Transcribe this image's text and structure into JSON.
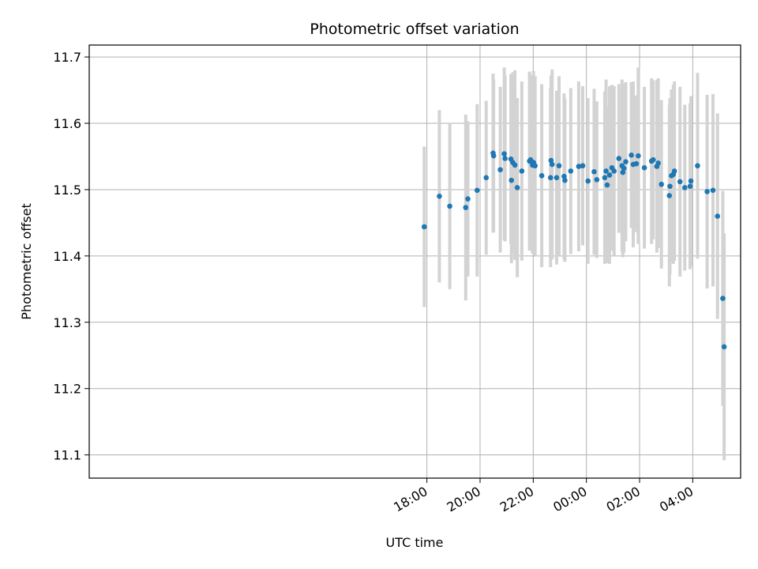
{
  "chart_data": {
    "type": "scatter",
    "title": "Photometric offset variation",
    "xlabel": "UTC time",
    "ylabel": "Photometric offset",
    "x_unit": "hours since 00:00 UTC",
    "xlim": [
      -18.7,
      5.8
    ],
    "ylim": [
      11.065,
      11.718
    ],
    "x_ticks": [
      {
        "x": -6.0,
        "label": "18:00"
      },
      {
        "x": -4.0,
        "label": "20:00"
      },
      {
        "x": -2.0,
        "label": "22:00"
      },
      {
        "x": 0.0,
        "label": "00:00"
      },
      {
        "x": 2.0,
        "label": "02:00"
      },
      {
        "x": 4.0,
        "label": "04:00"
      }
    ],
    "y_ticks": [
      {
        "y": 11.1,
        "label": "11.1"
      },
      {
        "y": 11.2,
        "label": "11.2"
      },
      {
        "y": 11.3,
        "label": "11.3"
      },
      {
        "y": 11.4,
        "label": "11.4"
      },
      {
        "y": 11.5,
        "label": "11.5"
      },
      {
        "y": 11.6,
        "label": "11.6"
      },
      {
        "y": 11.7,
        "label": "11.7"
      }
    ],
    "grid": true,
    "colors": {
      "marker": "#1f77b4",
      "errorbar": "#d3d3d3",
      "grid": "#b0b0b0"
    },
    "points": [
      {
        "x": -6.1,
        "y": 11.444,
        "yerr": 0.121
      },
      {
        "x": -5.53,
        "y": 11.49,
        "yerr": 0.13
      },
      {
        "x": -5.14,
        "y": 11.475,
        "yerr": 0.125
      },
      {
        "x": -4.54,
        "y": 11.473,
        "yerr": 0.14
      },
      {
        "x": -4.46,
        "y": 11.486,
        "yerr": 0.117
      },
      {
        "x": -4.11,
        "y": 11.499,
        "yerr": 0.13
      },
      {
        "x": -3.77,
        "y": 11.518,
        "yerr": 0.116
      },
      {
        "x": -3.51,
        "y": 11.555,
        "yerr": 0.12
      },
      {
        "x": -3.49,
        "y": 11.551,
        "yerr": 0.115
      },
      {
        "x": -3.24,
        "y": 11.53,
        "yerr": 0.125
      },
      {
        "x": -3.09,
        "y": 11.554,
        "yerr": 0.13
      },
      {
        "x": -3.06,
        "y": 11.547,
        "yerr": 0.125
      },
      {
        "x": -2.84,
        "y": 11.546,
        "yerr": 0.128
      },
      {
        "x": -2.82,
        "y": 11.514,
        "yerr": 0.125
      },
      {
        "x": -2.77,
        "y": 11.541,
        "yerr": 0.136
      },
      {
        "x": -2.69,
        "y": 11.537,
        "yerr": 0.143
      },
      {
        "x": -2.6,
        "y": 11.503,
        "yerr": 0.135
      },
      {
        "x": -2.43,
        "y": 11.528,
        "yerr": 0.135
      },
      {
        "x": -2.14,
        "y": 11.543,
        "yerr": 0.135
      },
      {
        "x": -2.1,
        "y": 11.545,
        "yerr": 0.128
      },
      {
        "x": -2.03,
        "y": 11.537,
        "yerr": 0.133
      },
      {
        "x": -1.99,
        "y": 11.541,
        "yerr": 0.138
      },
      {
        "x": -1.93,
        "y": 11.536,
        "yerr": 0.135
      },
      {
        "x": -1.68,
        "y": 11.521,
        "yerr": 0.138
      },
      {
        "x": -1.35,
        "y": 11.518,
        "yerr": 0.135
      },
      {
        "x": -1.33,
        "y": 11.544,
        "yerr": 0.128
      },
      {
        "x": -1.29,
        "y": 11.538,
        "yerr": 0.143
      },
      {
        "x": -1.12,
        "y": 11.518,
        "yerr": 0.131
      },
      {
        "x": -1.03,
        "y": 11.536,
        "yerr": 0.135
      },
      {
        "x": -0.84,
        "y": 11.52,
        "yerr": 0.125
      },
      {
        "x": -0.81,
        "y": 11.514,
        "yerr": 0.123
      },
      {
        "x": -0.59,
        "y": 11.528,
        "yerr": 0.125
      },
      {
        "x": -0.29,
        "y": 11.535,
        "yerr": 0.128
      },
      {
        "x": -0.14,
        "y": 11.536,
        "yerr": 0.12
      },
      {
        "x": 0.06,
        "y": 11.513,
        "yerr": 0.125
      },
      {
        "x": 0.29,
        "y": 11.527,
        "yerr": 0.125
      },
      {
        "x": 0.39,
        "y": 11.515,
        "yerr": 0.118
      },
      {
        "x": 0.69,
        "y": 11.518,
        "yerr": 0.13
      },
      {
        "x": 0.74,
        "y": 11.528,
        "yerr": 0.138
      },
      {
        "x": 0.78,
        "y": 11.507,
        "yerr": 0.118
      },
      {
        "x": 0.87,
        "y": 11.522,
        "yerr": 0.134
      },
      {
        "x": 0.96,
        "y": 11.533,
        "yerr": 0.125
      },
      {
        "x": 1.04,
        "y": 11.528,
        "yerr": 0.128
      },
      {
        "x": 1.22,
        "y": 11.547,
        "yerr": 0.112
      },
      {
        "x": 1.34,
        "y": 11.536,
        "yerr": 0.13
      },
      {
        "x": 1.37,
        "y": 11.526,
        "yerr": 0.128
      },
      {
        "x": 1.41,
        "y": 11.532,
        "yerr": 0.127
      },
      {
        "x": 1.48,
        "y": 11.542,
        "yerr": 0.12
      },
      {
        "x": 1.69,
        "y": 11.552,
        "yerr": 0.11
      },
      {
        "x": 1.76,
        "y": 11.538,
        "yerr": 0.125
      },
      {
        "x": 1.88,
        "y": 11.539,
        "yerr": 0.103
      },
      {
        "x": 1.95,
        "y": 11.551,
        "yerr": 0.133
      },
      {
        "x": 2.18,
        "y": 11.533,
        "yerr": 0.122
      },
      {
        "x": 2.45,
        "y": 11.543,
        "yerr": 0.125
      },
      {
        "x": 2.51,
        "y": 11.545,
        "yerr": 0.12
      },
      {
        "x": 2.65,
        "y": 11.535,
        "yerr": 0.13
      },
      {
        "x": 2.7,
        "y": 11.54,
        "yerr": 0.128
      },
      {
        "x": 2.82,
        "y": 11.508,
        "yerr": 0.127
      },
      {
        "x": 3.12,
        "y": 11.491,
        "yerr": 0.137
      },
      {
        "x": 3.14,
        "y": 11.505,
        "yerr": 0.133
      },
      {
        "x": 3.2,
        "y": 11.521,
        "yerr": 0.13
      },
      {
        "x": 3.27,
        "y": 11.523,
        "yerr": 0.135
      },
      {
        "x": 3.31,
        "y": 11.528,
        "yerr": 0.135
      },
      {
        "x": 3.52,
        "y": 11.512,
        "yerr": 0.143
      },
      {
        "x": 3.7,
        "y": 11.503,
        "yerr": 0.125
      },
      {
        "x": 3.9,
        "y": 11.505,
        "yerr": 0.125
      },
      {
        "x": 3.93,
        "y": 11.513,
        "yerr": 0.128
      },
      {
        "x": 4.18,
        "y": 11.536,
        "yerr": 0.14
      },
      {
        "x": 4.54,
        "y": 11.497,
        "yerr": 0.146
      },
      {
        "x": 4.76,
        "y": 11.499,
        "yerr": 0.145
      },
      {
        "x": 4.93,
        "y": 11.46,
        "yerr": 0.155
      },
      {
        "x": 5.13,
        "y": 11.336,
        "yerr": 0.162
      },
      {
        "x": 5.18,
        "y": 11.263,
        "yerr": 0.171
      }
    ]
  }
}
